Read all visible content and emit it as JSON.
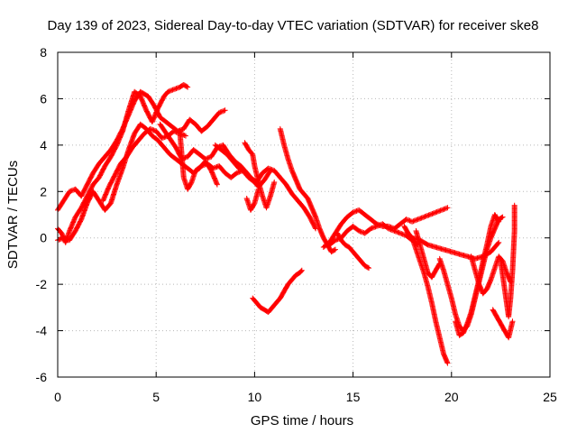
{
  "chart_data": {
    "type": "scatter",
    "title": "Day 139 of 2023, Sidereal Day-to-day VTEC variation (SDTVAR) for receiver ske8",
    "xlabel": "GPS time / hours",
    "ylabel": "SDTVAR / TECUs",
    "xlim": [
      0,
      25
    ],
    "ylim": [
      -6,
      8
    ],
    "xticks": [
      "0",
      "5",
      "10",
      "15",
      "20",
      "25"
    ],
    "yticks": [
      "-6",
      "-4",
      "-2",
      "0",
      "2",
      "4",
      "6",
      "8"
    ],
    "grid": true,
    "marker": "plus",
    "color": "#ff0000",
    "series": [
      {
        "x": [
          0.0,
          0.3,
          0.6,
          0.9,
          1.2,
          1.5,
          1.8,
          2.1,
          2.4,
          2.7,
          3.0,
          3.3,
          3.6,
          3.9,
          4.2,
          4.4,
          4.6,
          4.9,
          5.2,
          5.5,
          5.8,
          6.1,
          6.4,
          6.7,
          7.0,
          7.3,
          7.6,
          7.9,
          8.2,
          8.5
        ],
        "y": [
          1.2,
          1.6,
          2.0,
          2.1,
          1.8,
          2.3,
          2.8,
          3.2,
          3.5,
          3.8,
          4.2,
          4.7,
          5.3,
          5.9,
          6.3,
          6.2,
          6.1,
          5.7,
          5.2,
          5.0,
          4.8,
          4.6,
          4.7,
          5.1,
          4.9,
          4.6,
          4.8,
          5.1,
          5.4,
          5.5
        ]
      },
      {
        "x": [
          0.0,
          0.2,
          0.4,
          0.6,
          0.9,
          1.2,
          1.5,
          1.8,
          2.1,
          2.4,
          2.7,
          3.0,
          3.3,
          3.6,
          3.9,
          4.2,
          4.5,
          4.8,
          5.1,
          5.4,
          5.6,
          5.9,
          6.2,
          6.4,
          6.6
        ],
        "y": [
          0.4,
          0.2,
          -0.2,
          0.3,
          0.9,
          1.3,
          1.8,
          2.3,
          2.6,
          3.1,
          3.5,
          4.0,
          4.6,
          5.5,
          6.3,
          6.1,
          5.5,
          5.0,
          5.6,
          6.1,
          6.3,
          6.4,
          6.5,
          6.6,
          6.5
        ]
      },
      {
        "x": [
          0.0,
          0.3,
          0.6,
          0.9,
          1.2,
          1.5,
          1.8,
          2.1,
          2.4,
          2.7,
          3.0,
          3.3,
          3.6,
          3.9,
          4.2,
          4.5,
          4.8,
          5.1,
          5.4,
          5.7,
          6.0,
          6.3,
          6.6,
          6.9,
          7.2,
          7.5,
          7.8,
          8.1
        ],
        "y": [
          -0.1,
          0.0,
          -0.1,
          0.3,
          0.8,
          1.5,
          2.0,
          1.6,
          1.2,
          1.5,
          2.3,
          3.0,
          3.8,
          4.5,
          4.9,
          4.7,
          4.4,
          4.2,
          3.9,
          3.6,
          3.4,
          3.2,
          3.0,
          2.8,
          3.0,
          3.3,
          2.9,
          2.3
        ]
      },
      {
        "x": [
          2.3,
          2.6,
          2.9,
          3.2,
          3.5,
          3.8,
          4.1,
          4.4,
          4.7,
          5.0,
          5.3,
          5.6,
          5.9,
          6.2,
          6.5
        ],
        "y": [
          1.6,
          2.2,
          2.7,
          3.2,
          3.5,
          3.9,
          4.2,
          4.5,
          4.7,
          4.6,
          4.3,
          4.4,
          4.6,
          4.5,
          4.4
        ]
      },
      {
        "x": [
          5.2,
          5.6,
          6.0,
          6.3,
          6.6,
          6.9,
          7.2,
          7.5,
          7.8,
          8.1,
          8.4,
          8.7,
          9.0,
          9.3,
          9.6,
          9.9,
          10.2,
          10.5,
          10.8
        ],
        "y": [
          4.9,
          4.4,
          3.9,
          3.4,
          3.5,
          3.8,
          3.6,
          3.4,
          3.5,
          3.9,
          4.0,
          3.6,
          3.3,
          3.1,
          2.8,
          2.5,
          2.2,
          2.5,
          2.9
        ]
      },
      {
        "x": [
          6.2,
          6.4,
          6.6,
          6.8,
          7.0,
          7.3,
          7.6,
          7.9,
          8.2,
          8.5,
          8.8,
          9.1,
          9.4,
          9.7,
          10.0
        ],
        "y": [
          4.6,
          2.6,
          2.1,
          2.4,
          2.9,
          3.1,
          3.2,
          3.0,
          3.1,
          2.8,
          2.6,
          2.8,
          2.9,
          2.6,
          2.4
        ]
      },
      {
        "x": [
          8.0,
          8.3,
          8.6,
          8.9,
          9.2,
          9.5,
          9.8,
          10.1,
          10.4,
          10.7,
          11.0,
          11.3,
          11.6,
          11.9,
          12.2,
          12.5,
          12.8,
          13.1
        ],
        "y": [
          4.0,
          3.8,
          3.6,
          3.3,
          3.0,
          2.9,
          2.6,
          2.4,
          2.8,
          3.0,
          2.9,
          2.6,
          2.3,
          1.9,
          1.6,
          1.3,
          0.9,
          0.4
        ]
      },
      {
        "x": [
          9.5,
          9.7,
          9.9,
          10.0,
          10.2,
          10.4,
          10.6,
          10.8,
          11.0
        ],
        "y": [
          4.1,
          3.8,
          3.6,
          3.1,
          2.4,
          1.8,
          1.3,
          1.8,
          2.4
        ]
      },
      {
        "x": [
          9.6,
          9.8,
          10.0,
          10.2
        ],
        "y": [
          1.7,
          1.2,
          1.5,
          2.1
        ]
      },
      {
        "x": [
          11.3,
          11.5,
          11.7,
          11.9,
          12.1,
          12.3,
          12.5,
          12.7,
          12.9,
          13.1,
          13.3,
          13.5,
          13.7,
          13.9,
          14.1
        ],
        "y": [
          4.7,
          4.0,
          3.4,
          2.9,
          2.5,
          2.1,
          1.9,
          1.7,
          1.3,
          0.9,
          0.4,
          0.0,
          -0.3,
          -0.6,
          -0.5
        ]
      },
      {
        "x": [
          9.9,
          10.1,
          10.3,
          10.5,
          10.7,
          10.9,
          11.1,
          11.3,
          11.5,
          11.7,
          11.9,
          12.1,
          12.3,
          12.4
        ],
        "y": [
          -2.6,
          -2.8,
          -3.0,
          -3.1,
          -3.2,
          -3.0,
          -2.8,
          -2.6,
          -2.3,
          -2.0,
          -1.8,
          -1.6,
          -1.5,
          -1.4
        ]
      },
      {
        "x": [
          13.5,
          13.8,
          14.1,
          14.4,
          14.7,
          15.0,
          15.3,
          15.6,
          15.9,
          16.2,
          16.5,
          16.8,
          17.1,
          17.4,
          17.7,
          18.0,
          18.3,
          18.6,
          18.9,
          19.2,
          19.5,
          19.8
        ],
        "y": [
          -0.4,
          -0.2,
          0.2,
          0.6,
          0.9,
          1.1,
          1.2,
          1.0,
          0.8,
          0.6,
          0.5,
          0.5,
          0.4,
          0.6,
          0.8,
          0.7,
          0.8,
          0.9,
          1.0,
          1.1,
          1.2,
          1.3
        ]
      },
      {
        "x": [
          13.8,
          14.1,
          14.4,
          14.7,
          15.0,
          15.3,
          15.6,
          15.9,
          16.2,
          16.5,
          16.8,
          17.1,
          17.4,
          17.7,
          18.0,
          18.3
        ],
        "y": [
          -0.3,
          -0.1,
          0.0,
          0.3,
          0.5,
          0.3,
          0.2,
          0.4,
          0.5,
          0.6,
          0.4,
          0.3,
          0.2,
          0.1,
          -0.1,
          -0.3
        ]
      },
      {
        "x": [
          14.2,
          14.4,
          14.6,
          14.8,
          15.0,
          15.2,
          15.4,
          15.6,
          15.8
        ],
        "y": [
          0.2,
          -0.1,
          -0.3,
          -0.4,
          -0.6,
          -0.8,
          -1.0,
          -1.2,
          -1.3
        ]
      },
      {
        "x": [
          17.6,
          17.8,
          18.0,
          18.2,
          18.4,
          18.6,
          18.8,
          19.0,
          19.2,
          19.4,
          19.6,
          19.8
        ],
        "y": [
          0.5,
          0.2,
          0.0,
          -0.5,
          -1.0,
          -1.5,
          -2.1,
          -2.8,
          -3.6,
          -4.3,
          -5.0,
          -5.4
        ]
      },
      {
        "x": [
          18.2,
          18.4,
          18.6,
          18.8,
          19.0,
          19.2,
          19.4
        ],
        "y": [
          0.3,
          -0.3,
          -0.9,
          -1.5,
          -1.7,
          -1.4,
          -1.1
        ]
      },
      {
        "x": [
          18.0,
          18.4,
          18.8,
          19.2,
          19.6,
          20.0,
          20.4,
          20.8,
          21.2,
          21.6,
          22.0,
          22.4
        ],
        "y": [
          0.0,
          -0.1,
          -0.3,
          -0.4,
          -0.5,
          -0.6,
          -0.7,
          -0.8,
          -0.9,
          -0.8,
          -0.6,
          -0.2
        ]
      },
      {
        "x": [
          19.4,
          19.6,
          19.8,
          20.0,
          20.2,
          20.4,
          20.6,
          20.8,
          21.0,
          21.2,
          21.4,
          21.6,
          21.8,
          22.0,
          22.2,
          22.4,
          22.6
        ],
        "y": [
          -0.9,
          -1.4,
          -2.0,
          -2.6,
          -3.3,
          -3.8,
          -4.0,
          -3.8,
          -3.3,
          -2.6,
          -1.9,
          -1.2,
          -0.5,
          0.0,
          0.4,
          0.8,
          0.9
        ]
      },
      {
        "x": [
          20.2,
          20.4,
          20.6,
          20.8,
          21.0,
          21.2,
          21.4,
          21.6,
          21.8,
          22.0,
          22.2,
          22.4
        ],
        "y": [
          -3.6,
          -4.2,
          -4.1,
          -3.7,
          -3.2,
          -2.5,
          -1.8,
          -1.0,
          -0.3,
          0.5,
          1.0,
          0.7
        ]
      },
      {
        "x": [
          21.0,
          21.2,
          21.4,
          21.6,
          21.8,
          22.0,
          22.2,
          22.4,
          22.6,
          22.8,
          23.0
        ],
        "y": [
          -0.8,
          -1.4,
          -2.0,
          -2.4,
          -2.2,
          -1.8,
          -1.3,
          -0.8,
          -1.0,
          -1.5,
          -1.9
        ]
      },
      {
        "x": [
          22.1,
          22.3,
          22.5,
          22.7,
          22.9,
          23.1
        ],
        "y": [
          -3.1,
          -3.4,
          -3.7,
          -4.0,
          -4.3,
          -3.6
        ]
      },
      {
        "x": [
          22.5,
          22.7,
          22.9,
          23.0,
          23.1,
          23.2,
          23.2
        ],
        "y": [
          -1.0,
          -2.2,
          -3.4,
          -2.6,
          -1.4,
          0.3,
          1.4
        ]
      }
    ]
  }
}
